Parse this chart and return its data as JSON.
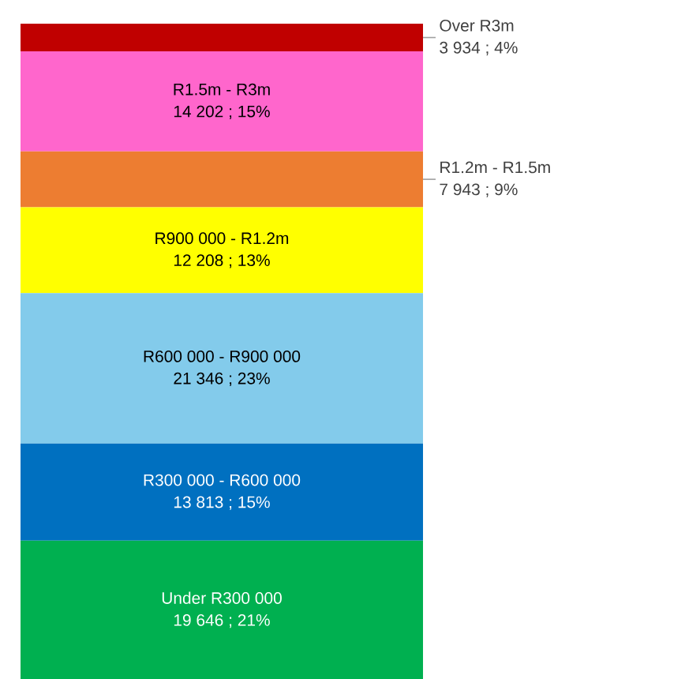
{
  "chart_data": {
    "type": "bar",
    "stacked": true,
    "categories": [
      null
    ],
    "series": [
      {
        "name": "Under R300 000",
        "color": "#00b050",
        "values": [
          19646
        ],
        "value_labels": [
          "19 646 ; 21%"
        ]
      },
      {
        "name": "R300 000 - R600 000",
        "color": "#0070c0",
        "values": [
          13813
        ],
        "value_labels": [
          "13 813 ; 15%"
        ]
      },
      {
        "name": "R600 000 - R900 000",
        "color": "#83cbeb",
        "values": [
          21346
        ],
        "value_labels": [
          "21 346 ; 23%"
        ]
      },
      {
        "name": "R900 000 - R1.2m",
        "color": "#ffff00",
        "values": [
          12208
        ],
        "value_labels": [
          "12 208 ; 13%"
        ]
      },
      {
        "name": "R1.2m - R1.5m",
        "color": "#ed7d31",
        "values": [
          7943
        ],
        "value_labels": [
          "7 943 ; 9%"
        ]
      },
      {
        "name": "R1.5m - R3m",
        "color": "#ff66cc",
        "values": [
          14202
        ],
        "value_labels": [
          "14 202 ; 15%"
        ]
      },
      {
        "name": "Over R3m",
        "color": "#c00000",
        "values": [
          3934
        ],
        "value_labels": [
          "3 934 ; 4%"
        ]
      }
    ]
  }
}
